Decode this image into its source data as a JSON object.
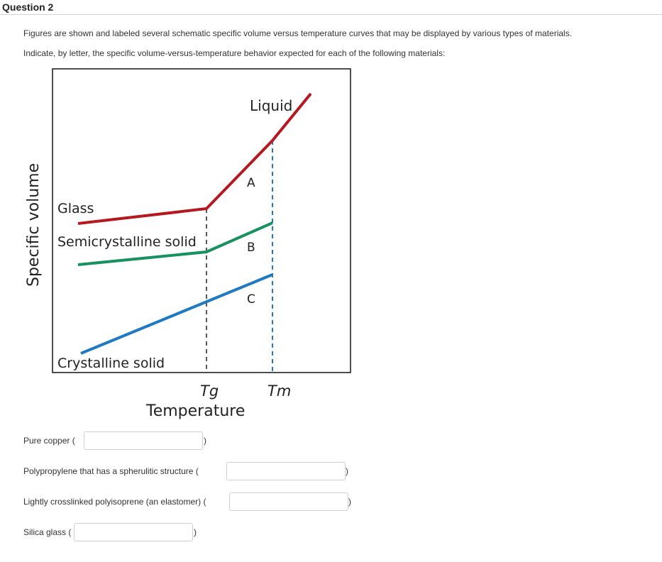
{
  "question": {
    "title": "Question 2",
    "instruction_1": "Figures  are shown and labeled several schematic specific volume versus temperature curves that may be displayed by various types of materials.",
    "instruction_2": "Indicate, by letter, the specific volume-versus-temperature behavior expected for each of the following materials:"
  },
  "figure": {
    "y_axis_label": "Specific volume",
    "x_axis_label": "Temperature",
    "tg_label": "Tg",
    "tm_label": "Tm",
    "liquid_label": "Liquid",
    "glass_label": "Glass",
    "semicrystalline_label": "Semicrystalline solid",
    "crystalline_label": "Crystalline solid",
    "curve_a_label": "A",
    "curve_b_label": "B",
    "curve_c_label": "C",
    "colors": {
      "curve_a": "#b5191f",
      "curve_b": "#17915f",
      "curve_c": "#1f7ac4",
      "dashed_tg": "#222222",
      "dashed_tm": "#1f7ac4"
    }
  },
  "answers": [
    {
      "label": "Pure copper (",
      "value": "",
      "close": ")"
    },
    {
      "label": "Polypropylene that has a spherulitic structure (",
      "value": "",
      "close": ")"
    },
    {
      "label": "Lightly crosslinked polyisoprene (an elastomer) (",
      "value": "",
      "close": ")"
    },
    {
      "label": "Silica glass (",
      "value": "",
      "close": ")"
    }
  ]
}
